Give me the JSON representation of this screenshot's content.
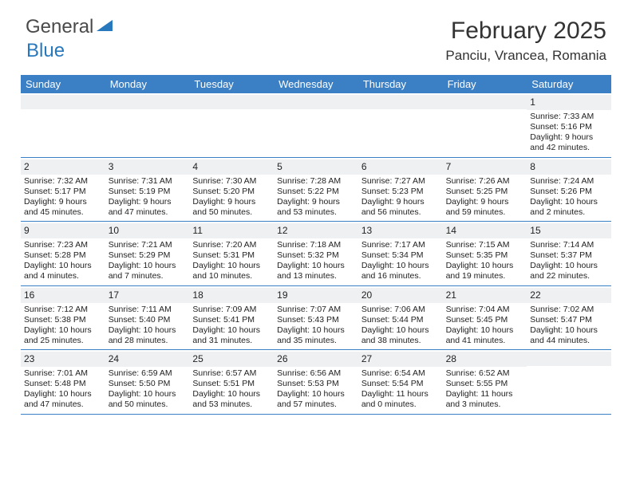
{
  "logo": {
    "part1": "General",
    "part2": "Blue"
  },
  "title": "February 2025",
  "location": "Panciu, Vrancea, Romania",
  "colors": {
    "header_bg": "#3b7fc4",
    "header_text": "#ffffff",
    "daynum_bg": "#eef0f2",
    "border": "#3b7fc4",
    "text": "#222222",
    "logo_gray": "#4a4a4a",
    "logo_blue": "#2878bd"
  },
  "day_names": [
    "Sunday",
    "Monday",
    "Tuesday",
    "Wednesday",
    "Thursday",
    "Friday",
    "Saturday"
  ],
  "weeks": [
    [
      null,
      null,
      null,
      null,
      null,
      null,
      {
        "n": "1",
        "sr": "Sunrise: 7:33 AM",
        "ss": "Sunset: 5:16 PM",
        "d1": "Daylight: 9 hours",
        "d2": "and 42 minutes."
      }
    ],
    [
      {
        "n": "2",
        "sr": "Sunrise: 7:32 AM",
        "ss": "Sunset: 5:17 PM",
        "d1": "Daylight: 9 hours",
        "d2": "and 45 minutes."
      },
      {
        "n": "3",
        "sr": "Sunrise: 7:31 AM",
        "ss": "Sunset: 5:19 PM",
        "d1": "Daylight: 9 hours",
        "d2": "and 47 minutes."
      },
      {
        "n": "4",
        "sr": "Sunrise: 7:30 AM",
        "ss": "Sunset: 5:20 PM",
        "d1": "Daylight: 9 hours",
        "d2": "and 50 minutes."
      },
      {
        "n": "5",
        "sr": "Sunrise: 7:28 AM",
        "ss": "Sunset: 5:22 PM",
        "d1": "Daylight: 9 hours",
        "d2": "and 53 minutes."
      },
      {
        "n": "6",
        "sr": "Sunrise: 7:27 AM",
        "ss": "Sunset: 5:23 PM",
        "d1": "Daylight: 9 hours",
        "d2": "and 56 minutes."
      },
      {
        "n": "7",
        "sr": "Sunrise: 7:26 AM",
        "ss": "Sunset: 5:25 PM",
        "d1": "Daylight: 9 hours",
        "d2": "and 59 minutes."
      },
      {
        "n": "8",
        "sr": "Sunrise: 7:24 AM",
        "ss": "Sunset: 5:26 PM",
        "d1": "Daylight: 10 hours",
        "d2": "and 2 minutes."
      }
    ],
    [
      {
        "n": "9",
        "sr": "Sunrise: 7:23 AM",
        "ss": "Sunset: 5:28 PM",
        "d1": "Daylight: 10 hours",
        "d2": "and 4 minutes."
      },
      {
        "n": "10",
        "sr": "Sunrise: 7:21 AM",
        "ss": "Sunset: 5:29 PM",
        "d1": "Daylight: 10 hours",
        "d2": "and 7 minutes."
      },
      {
        "n": "11",
        "sr": "Sunrise: 7:20 AM",
        "ss": "Sunset: 5:31 PM",
        "d1": "Daylight: 10 hours",
        "d2": "and 10 minutes."
      },
      {
        "n": "12",
        "sr": "Sunrise: 7:18 AM",
        "ss": "Sunset: 5:32 PM",
        "d1": "Daylight: 10 hours",
        "d2": "and 13 minutes."
      },
      {
        "n": "13",
        "sr": "Sunrise: 7:17 AM",
        "ss": "Sunset: 5:34 PM",
        "d1": "Daylight: 10 hours",
        "d2": "and 16 minutes."
      },
      {
        "n": "14",
        "sr": "Sunrise: 7:15 AM",
        "ss": "Sunset: 5:35 PM",
        "d1": "Daylight: 10 hours",
        "d2": "and 19 minutes."
      },
      {
        "n": "15",
        "sr": "Sunrise: 7:14 AM",
        "ss": "Sunset: 5:37 PM",
        "d1": "Daylight: 10 hours",
        "d2": "and 22 minutes."
      }
    ],
    [
      {
        "n": "16",
        "sr": "Sunrise: 7:12 AM",
        "ss": "Sunset: 5:38 PM",
        "d1": "Daylight: 10 hours",
        "d2": "and 25 minutes."
      },
      {
        "n": "17",
        "sr": "Sunrise: 7:11 AM",
        "ss": "Sunset: 5:40 PM",
        "d1": "Daylight: 10 hours",
        "d2": "and 28 minutes."
      },
      {
        "n": "18",
        "sr": "Sunrise: 7:09 AM",
        "ss": "Sunset: 5:41 PM",
        "d1": "Daylight: 10 hours",
        "d2": "and 31 minutes."
      },
      {
        "n": "19",
        "sr": "Sunrise: 7:07 AM",
        "ss": "Sunset: 5:43 PM",
        "d1": "Daylight: 10 hours",
        "d2": "and 35 minutes."
      },
      {
        "n": "20",
        "sr": "Sunrise: 7:06 AM",
        "ss": "Sunset: 5:44 PM",
        "d1": "Daylight: 10 hours",
        "d2": "and 38 minutes."
      },
      {
        "n": "21",
        "sr": "Sunrise: 7:04 AM",
        "ss": "Sunset: 5:45 PM",
        "d1": "Daylight: 10 hours",
        "d2": "and 41 minutes."
      },
      {
        "n": "22",
        "sr": "Sunrise: 7:02 AM",
        "ss": "Sunset: 5:47 PM",
        "d1": "Daylight: 10 hours",
        "d2": "and 44 minutes."
      }
    ],
    [
      {
        "n": "23",
        "sr": "Sunrise: 7:01 AM",
        "ss": "Sunset: 5:48 PM",
        "d1": "Daylight: 10 hours",
        "d2": "and 47 minutes."
      },
      {
        "n": "24",
        "sr": "Sunrise: 6:59 AM",
        "ss": "Sunset: 5:50 PM",
        "d1": "Daylight: 10 hours",
        "d2": "and 50 minutes."
      },
      {
        "n": "25",
        "sr": "Sunrise: 6:57 AM",
        "ss": "Sunset: 5:51 PM",
        "d1": "Daylight: 10 hours",
        "d2": "and 53 minutes."
      },
      {
        "n": "26",
        "sr": "Sunrise: 6:56 AM",
        "ss": "Sunset: 5:53 PM",
        "d1": "Daylight: 10 hours",
        "d2": "and 57 minutes."
      },
      {
        "n": "27",
        "sr": "Sunrise: 6:54 AM",
        "ss": "Sunset: 5:54 PM",
        "d1": "Daylight: 11 hours",
        "d2": "and 0 minutes."
      },
      {
        "n": "28",
        "sr": "Sunrise: 6:52 AM",
        "ss": "Sunset: 5:55 PM",
        "d1": "Daylight: 11 hours",
        "d2": "and 3 minutes."
      },
      null
    ]
  ]
}
